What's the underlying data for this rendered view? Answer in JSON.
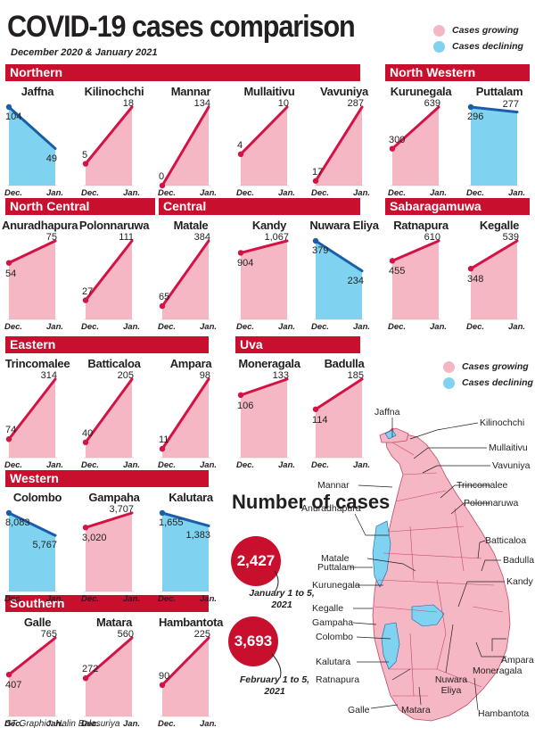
{
  "title": "COVID-19 cases comparison",
  "subtitle": "December 2020 & January 2021",
  "credit": "ST Graphic: Nalin Balasuriya",
  "legend": {
    "growing": "Cases growing",
    "declining": "Cases declining"
  },
  "colors": {
    "growing_fill": "#f4b7c3",
    "growing_line": "#d31245",
    "declining_fill": "#7fd3f0",
    "declining_line": "#1a5ea8",
    "banner": "#c8102e"
  },
  "x_labels": {
    "start": "Dec.",
    "end": "Jan."
  },
  "provinces": [
    "Northern",
    "North Western",
    "North Central",
    "Central",
    "Sabaragamuwa",
    "Eastern",
    "Uva",
    "Western",
    "Southern"
  ],
  "chart_data": [
    {
      "type": "line",
      "province": "Northern",
      "title": "Jaffna",
      "dec": 104,
      "jan": 49,
      "trend": "declining"
    },
    {
      "type": "line",
      "province": "Northern",
      "title": "Kilinochchi",
      "dec": 5,
      "jan": 18,
      "trend": "growing"
    },
    {
      "type": "line",
      "province": "Northern",
      "title": "Mannar",
      "dec": 0,
      "jan": 134,
      "trend": "growing"
    },
    {
      "type": "line",
      "province": "Northern",
      "title": "Mullaitivu",
      "dec": 4,
      "jan": 10,
      "trend": "growing"
    },
    {
      "type": "line",
      "province": "Northern",
      "title": "Vavuniya",
      "dec": 17,
      "jan": 287,
      "trend": "growing"
    },
    {
      "type": "line",
      "province": "North Western",
      "title": "Kurunegala",
      "dec": 300,
      "jan": 639,
      "trend": "growing"
    },
    {
      "type": "line",
      "province": "North Western",
      "title": "Puttalam",
      "dec": 296,
      "jan": 277,
      "trend": "declining"
    },
    {
      "type": "line",
      "province": "North Central",
      "title": "Anuradhapura",
      "dec": 54,
      "jan": 75,
      "trend": "growing"
    },
    {
      "type": "line",
      "province": "North Central",
      "title": "Polonnaruwa",
      "dec": 27,
      "jan": 111,
      "trend": "growing"
    },
    {
      "type": "line",
      "province": "Central",
      "title": "Matale",
      "dec": 65,
      "jan": 384,
      "trend": "growing"
    },
    {
      "type": "line",
      "province": "Central",
      "title": "Kandy",
      "dec": 904,
      "jan": 1067,
      "trend": "growing",
      "dec_label": "904",
      "jan_label": "1,067"
    },
    {
      "type": "line",
      "province": "Central",
      "title": "Nuwara Eliya",
      "dec": 379,
      "jan": 234,
      "trend": "declining"
    },
    {
      "type": "line",
      "province": "Sabaragamuwa",
      "title": "Ratnapura",
      "dec": 455,
      "jan": 610,
      "trend": "growing"
    },
    {
      "type": "line",
      "province": "Sabaragamuwa",
      "title": "Kegalle",
      "dec": 348,
      "jan": 539,
      "trend": "growing"
    },
    {
      "type": "line",
      "province": "Eastern",
      "title": "Trincomalee",
      "dec": 74,
      "jan": 314,
      "trend": "growing"
    },
    {
      "type": "line",
      "province": "Eastern",
      "title": "Batticaloa",
      "dec": 40,
      "jan": 205,
      "trend": "growing"
    },
    {
      "type": "line",
      "province": "Eastern",
      "title": "Ampara",
      "dec": 11,
      "jan": 98,
      "trend": "growing"
    },
    {
      "type": "line",
      "province": "Uva",
      "title": "Moneragala",
      "dec": 106,
      "jan": 133,
      "trend": "growing"
    },
    {
      "type": "line",
      "province": "Uva",
      "title": "Badulla",
      "dec": 114,
      "jan": 185,
      "trend": "growing"
    },
    {
      "type": "line",
      "province": "Western",
      "title": "Colombo",
      "dec": 8083,
      "jan": 5767,
      "trend": "declining",
      "dec_label": "8,083",
      "jan_label": "5,767"
    },
    {
      "type": "line",
      "province": "Western",
      "title": "Gampaha",
      "dec": 3020,
      "jan": 3707,
      "trend": "growing",
      "dec_label": "3,020",
      "jan_label": "3,707"
    },
    {
      "type": "line",
      "province": "Western",
      "title": "Kalutara",
      "dec": 1655,
      "jan": 1383,
      "trend": "declining",
      "dec_label": "1,655",
      "jan_label": "1,383"
    },
    {
      "type": "line",
      "province": "Southern",
      "title": "Galle",
      "dec": 407,
      "jan": 765,
      "trend": "growing"
    },
    {
      "type": "line",
      "province": "Southern",
      "title": "Matara",
      "dec": 272,
      "jan": 560,
      "trend": "growing"
    },
    {
      "type": "line",
      "province": "Southern",
      "title": "Hambantota",
      "dec": 90,
      "jan": 225,
      "trend": "growing"
    }
  ],
  "number_of_cases": {
    "title": "Number of cases",
    "items": [
      {
        "value": "2,427",
        "period": "January 1 to 5, 2021"
      },
      {
        "value": "3,693",
        "period": "February 1 to 5, 2021"
      }
    ]
  },
  "map": {
    "labels": [
      "Jaffna",
      "Kilinochchi",
      "Mullaitivu",
      "Vavuniya",
      "Mannar",
      "Trincomalee",
      "Anuradhapura",
      "Polonnaruwa",
      "Batticaloa",
      "Matale",
      "Badulla",
      "Puttalam",
      "Kandy",
      "Kurunegala",
      "Kegalle",
      "Gampaha",
      "Colombo",
      "Kalutara",
      "Ratnapura",
      "Ampara",
      "Moneragala",
      "Nuwara Eliya",
      "Hambantota",
      "Matara",
      "Galle"
    ]
  }
}
